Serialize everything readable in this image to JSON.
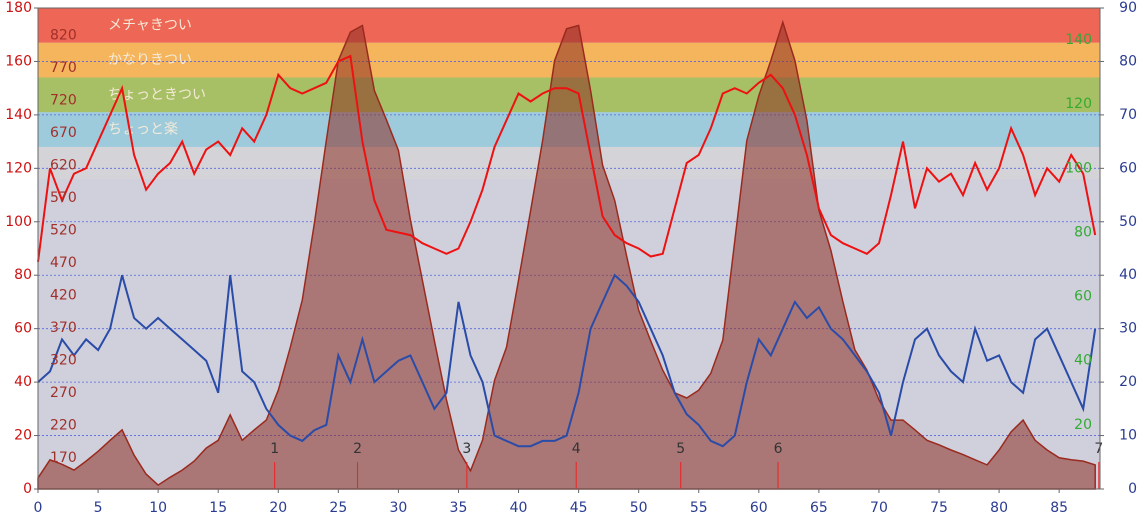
{
  "chart_data": {
    "type": "line",
    "x": [
      0,
      1,
      2,
      3,
      4,
      5,
      6,
      7,
      8,
      9,
      10,
      11,
      12,
      13,
      14,
      15,
      16,
      17,
      18,
      19,
      20,
      21,
      22,
      23,
      24,
      25,
      26,
      27,
      28,
      29,
      30,
      31,
      32,
      33,
      34,
      35,
      36,
      37,
      38,
      39,
      40,
      41,
      42,
      43,
      44,
      45,
      46,
      47,
      48,
      49,
      50,
      51,
      52,
      53,
      54,
      55,
      56,
      57,
      58,
      59,
      60,
      61,
      62,
      63,
      64,
      65,
      66,
      67,
      68,
      69,
      70,
      71,
      72,
      73,
      74,
      75,
      76,
      77,
      78,
      79,
      80,
      81,
      82,
      83,
      84,
      85,
      86,
      87,
      88
    ],
    "xlim": [
      0,
      88.4
    ],
    "xticks": [
      0,
      5,
      10,
      15,
      20,
      25,
      30,
      35,
      40,
      45,
      50,
      55,
      60,
      65,
      70,
      75,
      80,
      85
    ],
    "ylim": [
      0,
      180
    ],
    "yticks": [
      0,
      20,
      40,
      60,
      80,
      100,
      120,
      140,
      160,
      180
    ],
    "y2lim": [
      0,
      90
    ],
    "y2ticks": [
      0,
      10,
      20,
      30,
      40,
      50,
      60,
      70,
      80,
      90
    ],
    "y3lim": [
      0,
      150
    ],
    "y3ticks": [
      20,
      40,
      60,
      80,
      100,
      120,
      140
    ],
    "elevlim": [
      122,
      862
    ],
    "elevticks": [
      170,
      220,
      270,
      320,
      370,
      420,
      470,
      520,
      570,
      620,
      670,
      720,
      770,
      820
    ],
    "grid": true,
    "zones": [
      {
        "label": "メチャきつい",
        "from": 167,
        "to": 180,
        "color": "#ee6655"
      },
      {
        "label": "かなりきつい",
        "from": 154,
        "to": 167,
        "color": "#f5b55c"
      },
      {
        "label": "ちょっときつい",
        "from": 141,
        "to": 154,
        "color": "#a8c065"
      },
      {
        "label": "ちょっと楽",
        "from": 128,
        "to": 141,
        "color": "#9ecbdc"
      },
      {
        "label": "",
        "from": 116,
        "to": 128,
        "color": "#d4d4d8"
      }
    ],
    "laps": [
      {
        "label": "1",
        "x": 19.7
      },
      {
        "label": "2",
        "x": 26.6
      },
      {
        "label": "3",
        "x": 35.7
      },
      {
        "label": "4",
        "x": 44.8
      },
      {
        "label": "5",
        "x": 53.5
      },
      {
        "label": "6",
        "x": 61.6
      },
      {
        "label": "7",
        "x": 88.3
      }
    ],
    "series": [
      {
        "color": "#9b2a1e",
        "axis": "elev",
        "values": [
          139,
          167,
          160,
          151,
          165,
          180,
          197,
          213,
          174,
          145,
          128,
          140,
          151,
          165,
          185,
          197,
          236,
          197,
          213,
          228,
          274,
          340,
          413,
          530,
          658,
          781,
          825,
          835,
          735,
          690,
          643,
          536,
          443,
          350,
          259,
          182,
          150,
          197,
          289,
          340,
          443,
          550,
          658,
          781,
          830,
          835,
          735,
          620,
          566,
          480,
          397,
          350,
          305,
          270,
          262,
          274,
          300,
          351,
          504,
          658,
          727,
          781,
          840,
          781,
          689,
          551,
          489,
          410,
          336,
          305,
          259,
          228,
          228,
          213,
          197,
          190,
          182,
          175,
          167,
          159,
          182,
          210,
          228,
          197,
          182,
          170,
          167,
          165,
          159
        ]
      },
      {
        "color": "#2a4ca8",
        "axis": "y2",
        "values": [
          20,
          22,
          28,
          25,
          28,
          26,
          30,
          40,
          32,
          30,
          32,
          30,
          28,
          26,
          24,
          18,
          40,
          22,
          20,
          15,
          12,
          10,
          9,
          11,
          12,
          25,
          20,
          28,
          20,
          22,
          24,
          25,
          20,
          15,
          18,
          35,
          25,
          20,
          10,
          9,
          8,
          8,
          9,
          9,
          10,
          18,
          30,
          35,
          40,
          38,
          35,
          30,
          25,
          18,
          14,
          12,
          9,
          8,
          10,
          20,
          28,
          25,
          30,
          35,
          32,
          34,
          30,
          28,
          25,
          22,
          18,
          10,
          20,
          28,
          30,
          25,
          22,
          20,
          30,
          24,
          25,
          20,
          18,
          28,
          30,
          25,
          20,
          15,
          30
        ]
      },
      {
        "color": "#ee1111",
        "axis": "y",
        "values": [
          85,
          120,
          108,
          118,
          120,
          130,
          140,
          150,
          125,
          112,
          118,
          122,
          130,
          118,
          127,
          130,
          125,
          135,
          130,
          140,
          155,
          150,
          148,
          150,
          152,
          160,
          162,
          130,
          108,
          97,
          96,
          95,
          92,
          90,
          88,
          90,
          100,
          112,
          128,
          138,
          148,
          145,
          148,
          150,
          150,
          148,
          125,
          102,
          95,
          92,
          90,
          87,
          88,
          105,
          122,
          125,
          135,
          148,
          150,
          148,
          152,
          155,
          150,
          140,
          125,
          105,
          95,
          92,
          90,
          88,
          92,
          110,
          130,
          105,
          120,
          115,
          118,
          110,
          122,
          112,
          120,
          135,
          125,
          110,
          120,
          115,
          125,
          118,
          95
        ]
      }
    ]
  }
}
